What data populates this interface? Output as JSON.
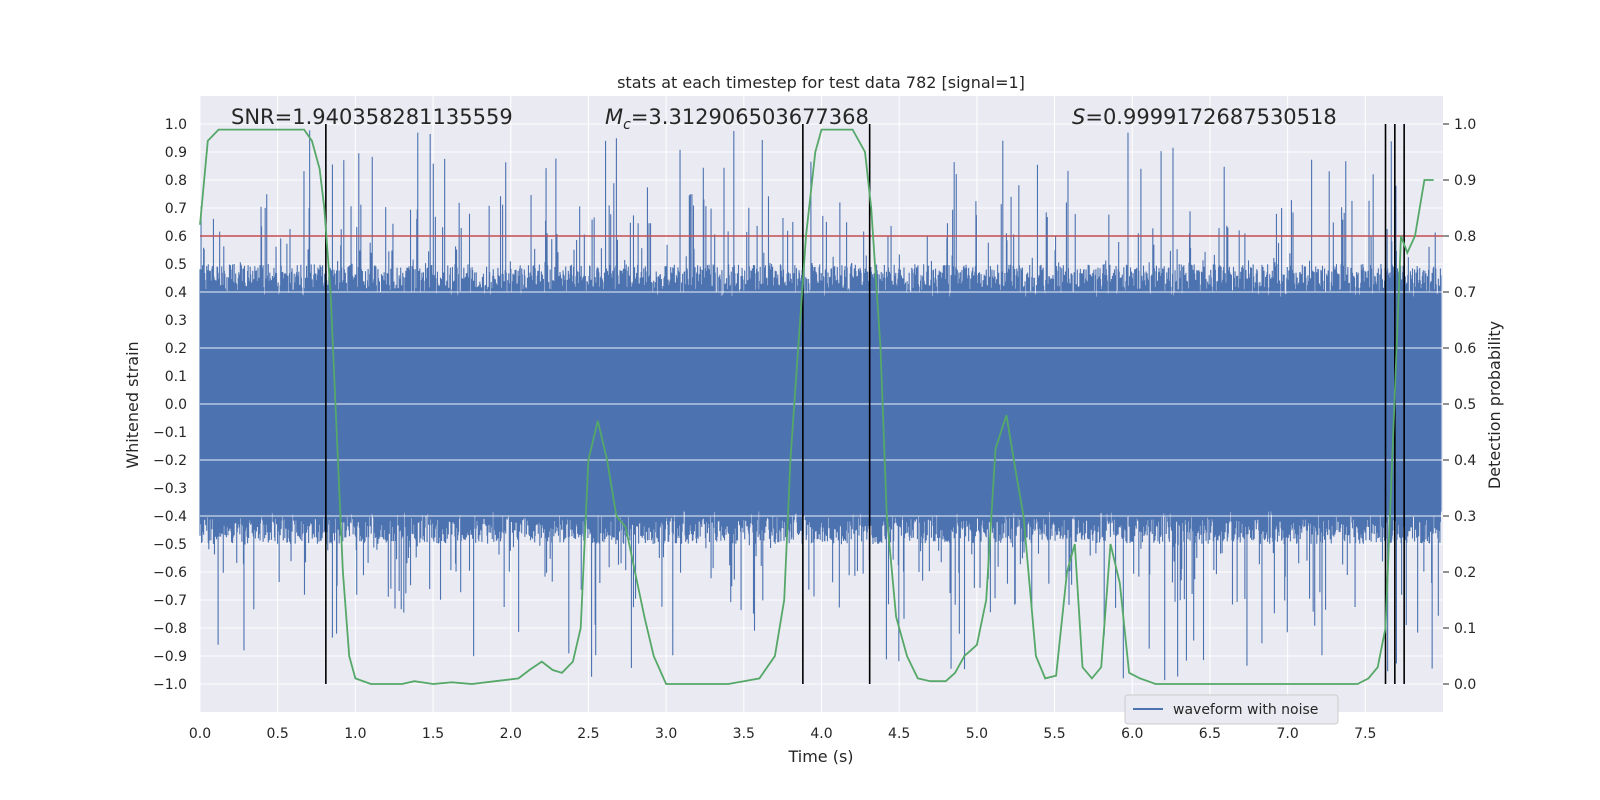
{
  "chart_data": {
    "type": "line",
    "title": "stats at each timestep for test data 782 [signal=1]",
    "xlabel": "Time (s)",
    "ylabel": "Whitened strain",
    "y2label": "Detection probability",
    "xlim": [
      0.0,
      8.0
    ],
    "ylim": [
      -1.1,
      1.1
    ],
    "y2lim": [
      -0.05,
      1.05
    ],
    "xticks": [
      "0.0",
      "0.5",
      "1.0",
      "1.5",
      "2.0",
      "2.5",
      "3.0",
      "3.5",
      "4.0",
      "4.5",
      "5.0",
      "5.5",
      "6.0",
      "6.5",
      "7.0",
      "7.5"
    ],
    "yticks": [
      "1.0",
      "0.9",
      "0.8",
      "0.7",
      "0.6",
      "0.5",
      "0.4",
      "0.3",
      "0.2",
      "0.1",
      "0.0",
      "-0.1",
      "-0.2",
      "-0.3",
      "-0.4",
      "-0.5",
      "-0.6",
      "-0.7",
      "-0.8",
      "-0.9",
      "-1.0"
    ],
    "y2ticks": [
      "1.0",
      "0.9",
      "0.8",
      "0.7",
      "0.6",
      "0.5",
      "0.4",
      "0.3",
      "0.2",
      "0.1",
      "0.0"
    ],
    "grid": true,
    "legend": {
      "placement": "lower-center-right",
      "entries": [
        "waveform with noise"
      ]
    },
    "annotations": {
      "snr": "SNR=1.940358281135559",
      "mc_symbol": "M",
      "mc_sub": "c",
      "mc_value": "=3.312906503677368",
      "s_symbol": "S",
      "s_value": "=0.9999172687530518"
    },
    "threshold_y2": 0.8,
    "vertical_lines_x": [
      0.81,
      3.88,
      4.31,
      7.63,
      7.69,
      7.75
    ],
    "series": [
      {
        "name": "waveform with noise",
        "axis": "left",
        "description_values": "dense noise band",
        "envelope": {
          "core": 0.38,
          "peak_max": 0.98,
          "peak_min": -0.99
        }
      },
      {
        "name": "",
        "axis": "right",
        "x": [
          0.0,
          0.05,
          0.12,
          0.2,
          0.3,
          0.4,
          0.5,
          0.6,
          0.67,
          0.72,
          0.77,
          0.8,
          0.84,
          0.88,
          0.92,
          0.96,
          1.0,
          1.1,
          1.2,
          1.3,
          1.38,
          1.5,
          1.62,
          1.75,
          1.9,
          2.05,
          2.12,
          2.2,
          2.27,
          2.33,
          2.4,
          2.45,
          2.5,
          2.56,
          2.62,
          2.68,
          2.74,
          2.8,
          2.86,
          2.92,
          3.0,
          3.2,
          3.4,
          3.5,
          3.6,
          3.7,
          3.76,
          3.8,
          3.85,
          3.9,
          3.96,
          4.0,
          4.08,
          4.2,
          4.28,
          4.32,
          4.38,
          4.42,
          4.48,
          4.55,
          4.62,
          4.7,
          4.8,
          4.86,
          4.92,
          4.96,
          5.0,
          5.06,
          5.12,
          5.19,
          5.25,
          5.3,
          5.38,
          5.44,
          5.51,
          5.58,
          5.63,
          5.68,
          5.74,
          5.8,
          5.86,
          5.92,
          5.98,
          6.05,
          6.15,
          6.3,
          6.5,
          7.0,
          7.3,
          7.45,
          7.52,
          7.58,
          7.63,
          7.68,
          7.73,
          7.77,
          7.82,
          7.88,
          7.94
        ],
        "y": [
          0.82,
          0.97,
          0.99,
          0.99,
          0.99,
          0.99,
          0.99,
          0.99,
          0.99,
          0.97,
          0.92,
          0.85,
          0.7,
          0.45,
          0.2,
          0.05,
          0.01,
          0.0,
          0.0,
          0.0,
          0.005,
          0.0,
          0.003,
          0.0,
          0.005,
          0.01,
          0.025,
          0.04,
          0.025,
          0.02,
          0.04,
          0.1,
          0.4,
          0.47,
          0.4,
          0.3,
          0.28,
          0.2,
          0.12,
          0.05,
          0.0,
          0.0,
          0.0,
          0.005,
          0.01,
          0.05,
          0.15,
          0.4,
          0.6,
          0.8,
          0.95,
          0.99,
          0.99,
          0.99,
          0.95,
          0.85,
          0.6,
          0.3,
          0.12,
          0.05,
          0.01,
          0.005,
          0.005,
          0.02,
          0.05,
          0.06,
          0.07,
          0.15,
          0.42,
          0.48,
          0.38,
          0.3,
          0.05,
          0.01,
          0.015,
          0.2,
          0.25,
          0.03,
          0.01,
          0.03,
          0.25,
          0.18,
          0.02,
          0.01,
          0.0,
          0.0,
          0.0,
          0.0,
          0.0,
          0.0,
          0.01,
          0.03,
          0.1,
          0.45,
          0.8,
          0.77,
          0.8,
          0.9,
          0.9
        ]
      }
    ],
    "colors": {
      "noise": "#4c72b0",
      "probability": "#55a868",
      "threshold": "#c44e52",
      "vlines": "#000000",
      "panel": "#eaeaf2"
    }
  }
}
